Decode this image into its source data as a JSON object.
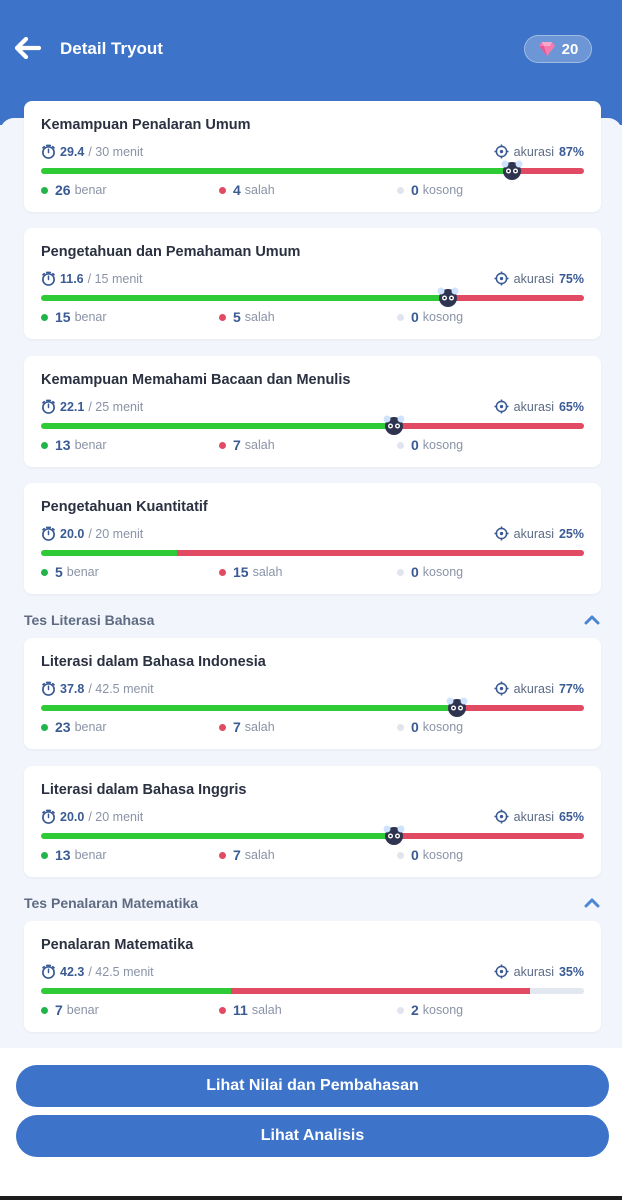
{
  "header": {
    "title": "Detail Tryout",
    "gem_count": "20"
  },
  "cards": [
    {
      "title": "Kemampuan Penalaran Umum",
      "time": "29.4",
      "total": "/ 30 menit",
      "acc_label": "akurasi",
      "acc": "87%",
      "benar": "26",
      "salah": "4",
      "kosong": "0",
      "benar_label": "benar",
      "salah_label": "salah",
      "kosong_label": "kosong"
    },
    {
      "title": "Pengetahuan dan Pemahaman Umum",
      "time": "11.6",
      "total": "/ 15 menit",
      "acc_label": "akurasi",
      "acc": "75%",
      "benar": "15",
      "salah": "5",
      "kosong": "0",
      "benar_label": "benar",
      "salah_label": "salah",
      "kosong_label": "kosong"
    },
    {
      "title": "Kemampuan Memahami Bacaan dan Menulis",
      "time": "22.1",
      "total": "/ 25 menit",
      "acc_label": "akurasi",
      "acc": "65%",
      "benar": "13",
      "salah": "7",
      "kosong": "0",
      "benar_label": "benar",
      "salah_label": "salah",
      "kosong_label": "kosong"
    },
    {
      "title": "Pengetahuan Kuantitatif",
      "time": "20.0",
      "total": "/ 20 menit",
      "acc_label": "akurasi",
      "acc": "25%",
      "benar": "5",
      "salah": "15",
      "kosong": "0",
      "benar_label": "benar",
      "salah_label": "salah",
      "kosong_label": "kosong"
    },
    {
      "title": "Literasi dalam Bahasa Indonesia",
      "time": "37.8",
      "total": "/ 42.5 menit",
      "acc_label": "akurasi",
      "acc": "77%",
      "benar": "23",
      "salah": "7",
      "kosong": "0",
      "benar_label": "benar",
      "salah_label": "salah",
      "kosong_label": "kosong"
    },
    {
      "title": "Literasi dalam Bahasa Inggris",
      "time": "20.0",
      "total": "/ 20 menit",
      "acc_label": "akurasi",
      "acc": "65%",
      "benar": "13",
      "salah": "7",
      "kosong": "0",
      "benar_label": "benar",
      "salah_label": "salah",
      "kosong_label": "kosong"
    },
    {
      "title": "Penalaran Matematika",
      "time": "42.3",
      "total": "/ 42.5 menit",
      "acc_label": "akurasi",
      "acc": "35%",
      "benar": "7",
      "salah": "11",
      "kosong": "2",
      "benar_label": "benar",
      "salah_label": "salah",
      "kosong_label": "kosong"
    }
  ],
  "sections": {
    "literasi": "Tes Literasi Bahasa",
    "matematika": "Tes Penalaran Matematika"
  },
  "buttons": {
    "nilai": "Lihat Nilai dan Pembahasan",
    "analisis": "Lihat Analisis"
  },
  "colors": {
    "primary": "#3d73c8",
    "correct": "#2fcb36",
    "wrong": "#e14a63",
    "empty": "#e3e7ef"
  },
  "icons": {
    "back": "arrow-left-icon",
    "gem": "gem-icon",
    "timer": "stopwatch-icon",
    "accuracy": "target-icon",
    "collapse": "chevron-up-icon",
    "progress_marker": "mascot-icon"
  }
}
